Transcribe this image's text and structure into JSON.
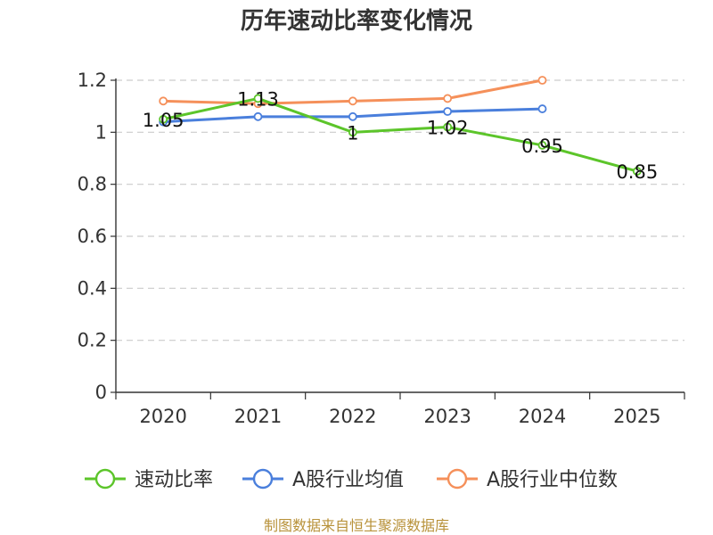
{
  "chart_data": {
    "type": "line",
    "title": "历年速动比率变化情况",
    "xlabel": "",
    "ylabel": "",
    "categories": [
      "2020",
      "2021",
      "2022",
      "2023",
      "2024",
      "2025"
    ],
    "y_ticks": [
      "0",
      "0.2",
      "0.4",
      "0.6",
      "0.8",
      "1",
      "1.2"
    ],
    "ylim": [
      0,
      1.2
    ],
    "grid": true,
    "legend_position": "bottom",
    "series": [
      {
        "name": "速动比率",
        "color": "#5cc52a",
        "values": [
          1.05,
          1.13,
          1.0,
          1.02,
          0.95,
          0.85
        ],
        "labels": [
          "1.05",
          "1.13",
          "1",
          "1.02",
          "0.95",
          "0.85"
        ]
      },
      {
        "name": "A股行业均值",
        "color": "#4a7fdc",
        "values": [
          1.04,
          1.06,
          1.06,
          1.08,
          1.09,
          null
        ]
      },
      {
        "name": "A股行业中位数",
        "color": "#f5905a",
        "values": [
          1.12,
          1.11,
          1.12,
          1.13,
          1.2,
          null
        ]
      }
    ]
  },
  "footer": {
    "source": "制图数据来自恒生聚源数据库"
  }
}
